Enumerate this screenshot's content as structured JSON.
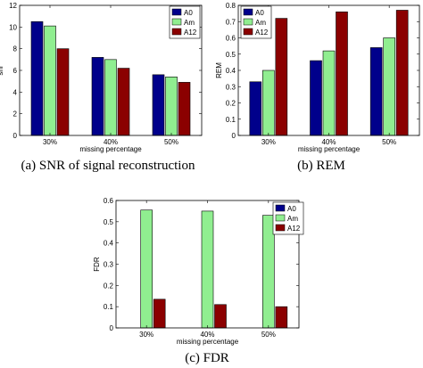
{
  "colors": {
    "A0": "#00008b",
    "Am": "#90ee90",
    "A12": "#8b0000",
    "axis": "#000000"
  },
  "captions": [
    "(a) SNR of signal reconstruction",
    "(b) REM",
    "(c) FDR"
  ],
  "chart_data": [
    {
      "type": "bar",
      "categories": [
        "30%",
        "40%",
        "50%"
      ],
      "series": [
        {
          "name": "A0",
          "values": [
            10.5,
            7.2,
            5.6
          ]
        },
        {
          "name": "Am",
          "values": [
            10.1,
            7.0,
            5.4
          ]
        },
        {
          "name": "A12",
          "values": [
            8.0,
            6.2,
            4.9
          ]
        }
      ],
      "xlabel": "missing percentage",
      "ylabel": "snr",
      "ylim": [
        0,
        12
      ],
      "yticks": [
        0,
        2,
        4,
        6,
        8,
        10,
        12
      ],
      "legend": "top-right",
      "caption": "(a) SNR of signal reconstruction"
    },
    {
      "type": "bar",
      "categories": [
        "30%",
        "40%",
        "50%"
      ],
      "series": [
        {
          "name": "A0",
          "values": [
            0.33,
            0.46,
            0.54
          ]
        },
        {
          "name": "Am",
          "values": [
            0.4,
            0.52,
            0.6
          ]
        },
        {
          "name": "A12",
          "values": [
            0.72,
            0.76,
            0.77
          ]
        }
      ],
      "xlabel": "missing percentage",
      "ylabel": "REM",
      "ylim": [
        0,
        0.8
      ],
      "yticks": [
        0,
        0.1,
        0.2,
        0.3,
        0.4,
        0.5,
        0.6,
        0.7,
        0.8
      ],
      "legend": "top-left",
      "caption": "(b) REM"
    },
    {
      "type": "bar",
      "categories": [
        "30%",
        "40%",
        "50%"
      ],
      "series": [
        {
          "name": "A0",
          "values": [
            0,
            0,
            0
          ]
        },
        {
          "name": "Am",
          "values": [
            0.555,
            0.55,
            0.53
          ]
        },
        {
          "name": "A12",
          "values": [
            0.135,
            0.11,
            0.1
          ]
        }
      ],
      "xlabel": "missing percentage",
      "ylabel": "FDR",
      "ylim": [
        0,
        0.6
      ],
      "yticks": [
        0,
        0.1,
        0.2,
        0.3,
        0.4,
        0.5,
        0.6
      ],
      "legend": "top-right",
      "caption": "(c) FDR"
    }
  ]
}
